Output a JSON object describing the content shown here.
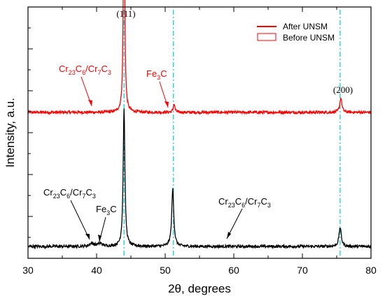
{
  "chart_data": {
    "type": "line",
    "xlabel": "2θ, degrees",
    "ylabel": "Intensity, a.u.",
    "xlim": [
      30,
      80
    ],
    "x_ticks": [
      "30",
      "40",
      "50",
      "60",
      "70",
      "80"
    ],
    "grid": false,
    "legend_position": "top-right",
    "series": [
      {
        "name": "After UNSM",
        "color": "#ff0000",
        "baseline": 0.56,
        "peaks": [
          {
            "x": 44.0,
            "height": 0.93,
            "width": 0.12
          },
          {
            "x": 51.3,
            "height": 0.035,
            "width": 0.14
          },
          {
            "x": 75.6,
            "height": 0.06,
            "width": 0.18
          }
        ]
      },
      {
        "name": "Before UNSM",
        "color": "#000000",
        "baseline": 0.0,
        "peaks": [
          {
            "x": 44.0,
            "height": 0.58,
            "width": 0.15
          },
          {
            "x": 51.1,
            "height": 0.24,
            "width": 0.18
          },
          {
            "x": 75.5,
            "height": 0.08,
            "width": 0.2
          },
          {
            "x": 39.3,
            "height": 0.012,
            "width": 0.4
          },
          {
            "x": 40.5,
            "height": 0.012,
            "width": 0.4
          }
        ]
      }
    ],
    "reference_lines": {
      "color": "#00ccdd",
      "x": [
        44.0,
        51.2,
        75.5
      ]
    },
    "annotations": {
      "red_carbide": {
        "base": "Cr",
        "parts": [
          [
            "23",
            "C"
          ],
          [
            "6",
            "/Cr"
          ],
          [
            "7",
            "C"
          ],
          [
            "3",
            ""
          ]
        ],
        "color": "#ff0000"
      },
      "red_fe3c": {
        "base": "Fe",
        "parts": [
          [
            "3",
            "C"
          ]
        ],
        "color": "#ff0000"
      },
      "black_carbide_left": {
        "base": "Cr",
        "parts": [
          [
            "23",
            "C"
          ],
          [
            "6",
            "/Cr"
          ],
          [
            "7",
            "C"
          ],
          [
            "3",
            ""
          ]
        ],
        "color": "#000000"
      },
      "black_fe3c": {
        "base": "Fe",
        "parts": [
          [
            "3",
            "C"
          ]
        ],
        "color": "#000000"
      },
      "black_carbide_right": {
        "base": "Cr",
        "parts": [
          [
            "23",
            "C"
          ],
          [
            "6",
            "/Cr"
          ],
          [
            "7",
            "C"
          ],
          [
            "3",
            ""
          ]
        ],
        "color": "#000000"
      },
      "peak_111": "(111)",
      "peak_200": "(200)"
    }
  }
}
